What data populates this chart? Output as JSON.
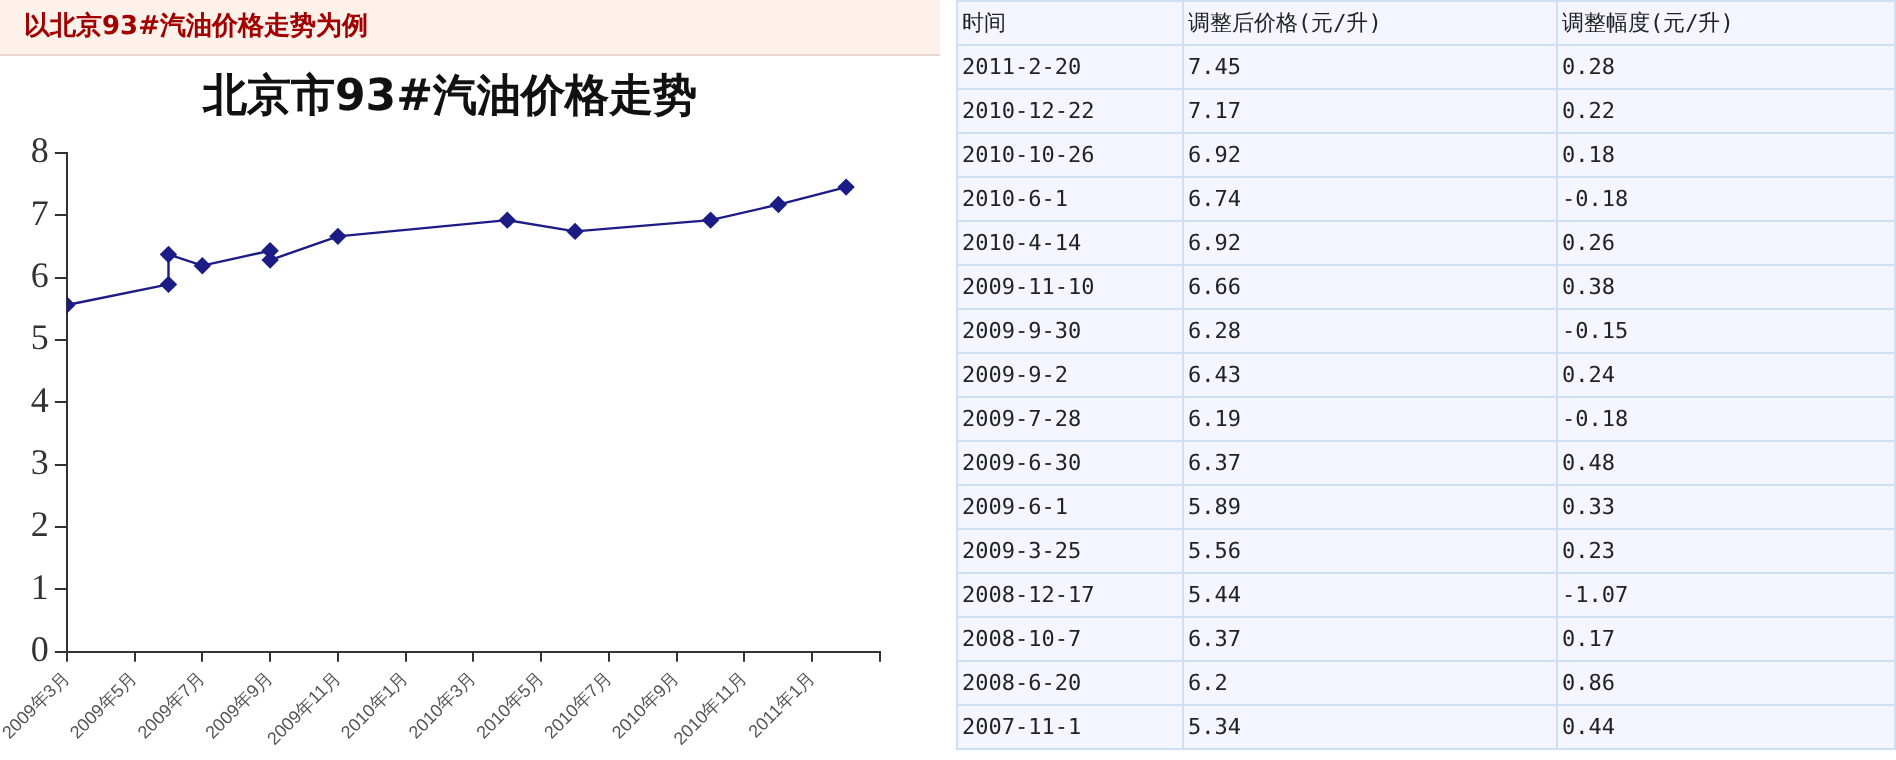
{
  "chart_data": [
    {
      "type": "line",
      "title": "以北京93#汽油价格走势为例",
      "subtitle": "北京市93#汽油价格走势",
      "color": "#1c1c86",
      "marker": "diamond",
      "x": [
        "2009-03",
        "2009-06",
        "2009-06",
        "2009-07",
        "2009-09",
        "2009-09",
        "2009-11",
        "2010-04",
        "2010-06",
        "2010-10",
        "2010-12",
        "2011-02"
      ],
      "values": [
        5.56,
        5.89,
        6.37,
        6.19,
        6.43,
        6.28,
        6.66,
        6.92,
        6.74,
        6.92,
        7.17,
        7.45
      ],
      "xlim": [
        "2009-03",
        "2011-03"
      ],
      "xticks": [
        {
          "value": "2009-03",
          "label": "2009年3月"
        },
        {
          "value": "2009-05",
          "label": "2009年5月"
        },
        {
          "value": "2009-07",
          "label": "2009年7月"
        },
        {
          "value": "2009-09",
          "label": "2009年9月"
        },
        {
          "value": "2009-11",
          "label": "2009年11月"
        },
        {
          "value": "2010-01",
          "label": "2010年1月"
        },
        {
          "value": "2010-03",
          "label": "2010年3月"
        },
        {
          "value": "2010-05",
          "label": "2010年5月"
        },
        {
          "value": "2010-07",
          "label": "2010年7月"
        },
        {
          "value": "2010-09",
          "label": "2010年9月"
        },
        {
          "value": "2010-11",
          "label": "2010年11月"
        },
        {
          "value": "2011-01",
          "label": "2011年1月"
        },
        {
          "value": "2011-03",
          "label": null
        }
      ],
      "ylim": [
        0,
        8
      ],
      "yticks": [
        0,
        1,
        2,
        3,
        4,
        5,
        6,
        7,
        8
      ]
    },
    {
      "type": "other",
      "xlabel": "时间",
      "data_labels": true,
      "categories": [
        "2011-2-20",
        "2010-12-22",
        "2010-10-26",
        "2010-6-1",
        "2010-4-14",
        "2009-11-10",
        "2009-9-30",
        "2009-9-2",
        "2009-7-28",
        "2009-6-30",
        "2009-6-1",
        "2009-3-25",
        "2008-12-17",
        "2008-10-7",
        "2008-6-20",
        "2007-11-1"
      ],
      "series": [
        {
          "name": "调整后价格(元/升)",
          "values": [
            7.45,
            7.17,
            6.92,
            6.74,
            6.92,
            6.66,
            6.28,
            6.43,
            6.19,
            6.37,
            5.89,
            5.56,
            5.44,
            6.37,
            6.2,
            5.34
          ]
        },
        {
          "name": "调整幅度(元/升)",
          "values": [
            0.28,
            0.22,
            0.18,
            -0.18,
            0.26,
            0.38,
            -0.15,
            0.24,
            -0.18,
            0.48,
            0.33,
            0.23,
            -1.07,
            0.17,
            0.86,
            0.44
          ]
        }
      ]
    }
  ]
}
